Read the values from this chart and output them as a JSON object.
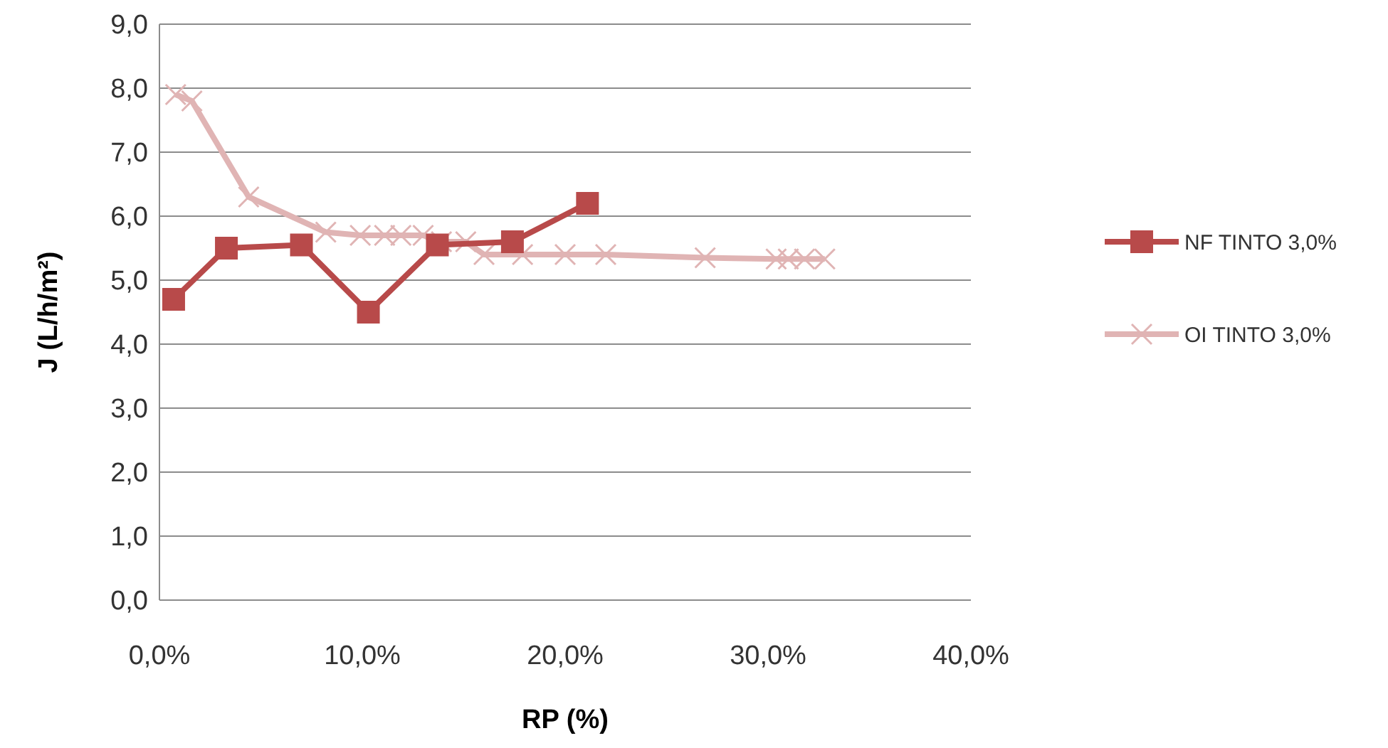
{
  "chart_data": {
    "type": "line",
    "xlabel": "RP (%)",
    "ylabel": "J (L/h/m²)",
    "xlim": [
      0,
      40
    ],
    "xticks": [
      {
        "value": 0,
        "label": "0,0%"
      },
      {
        "value": 10,
        "label": "10,0%"
      },
      {
        "value": 20,
        "label": "20,0%"
      },
      {
        "value": 30,
        "label": "30,0%"
      },
      {
        "value": 40,
        "label": "40,0%"
      }
    ],
    "ylim": [
      0,
      9
    ],
    "yticks": [
      {
        "value": 0,
        "label": "0,0"
      },
      {
        "value": 1,
        "label": "1,0"
      },
      {
        "value": 2,
        "label": "2,0"
      },
      {
        "value": 3,
        "label": "3,0"
      },
      {
        "value": 4,
        "label": "4,0"
      },
      {
        "value": 5,
        "label": "5,0"
      },
      {
        "value": 6,
        "label": "6,0"
      },
      {
        "value": 7,
        "label": "7,0"
      },
      {
        "value": 8,
        "label": "8,0"
      },
      {
        "value": 9,
        "label": "9,0"
      }
    ],
    "grid": "y",
    "legend": "right",
    "series": [
      {
        "name": "NF TINTO 3,0%",
        "color": "#b84a4a",
        "marker": "square",
        "x": [
          0.7,
          3.3,
          7.0,
          10.3,
          13.7,
          17.4,
          21.1
        ],
        "values": [
          4.7,
          5.5,
          5.55,
          4.5,
          5.55,
          5.6,
          6.2
        ]
      },
      {
        "name": "OI TINTO 3,0%",
        "color": "#e0b4b4",
        "marker": "cross",
        "x": [
          0.8,
          1.6,
          4.4,
          8.2,
          9.9,
          11.1,
          11.9,
          13.0,
          13.9,
          15.1,
          16.0,
          17.9,
          20.0,
          22.0,
          26.9,
          30.4,
          31.0,
          31.8,
          32.8
        ],
        "values": [
          7.9,
          7.8,
          6.3,
          5.75,
          5.7,
          5.7,
          5.7,
          5.7,
          5.6,
          5.6,
          5.4,
          5.4,
          5.4,
          5.4,
          5.35,
          5.33,
          5.33,
          5.33,
          5.33
        ]
      }
    ]
  }
}
